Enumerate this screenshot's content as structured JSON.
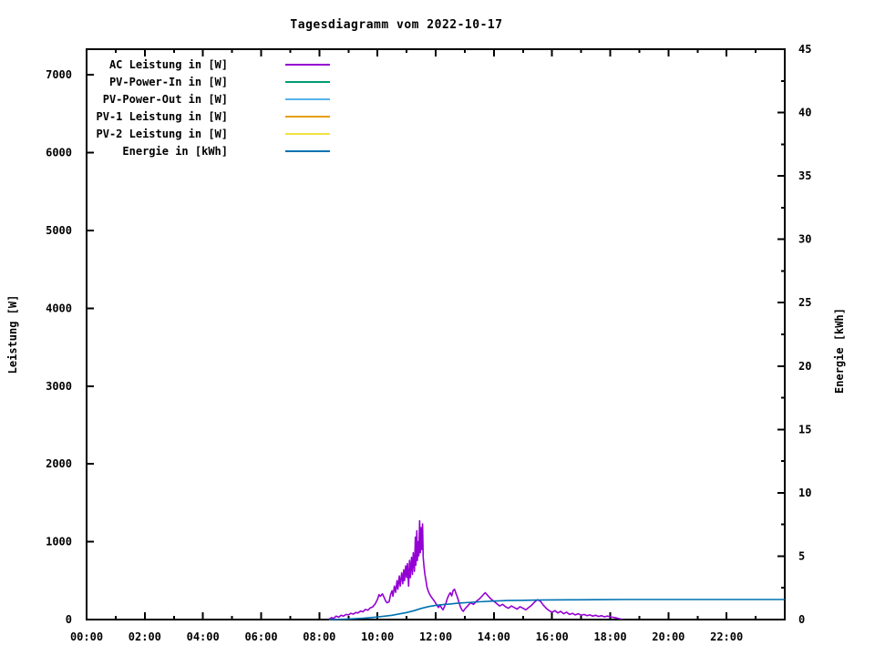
{
  "chart_data": {
    "type": "line",
    "title": "Tagesdiagramm vom 2022-10-17",
    "ylabel": "Leistung [W]",
    "y2label": "Energie [kWh]",
    "x_unit": "hours",
    "xlim": [
      0,
      24
    ],
    "x_tick_hours": [
      0,
      2,
      4,
      6,
      8,
      10,
      12,
      14,
      16,
      18,
      20,
      22
    ],
    "x_tick_labels": [
      "00:00",
      "02:00",
      "04:00",
      "06:00",
      "08:00",
      "10:00",
      "12:00",
      "14:00",
      "16:00",
      "18:00",
      "20:00",
      "22:00"
    ],
    "x_minor_step_h": 1,
    "ylim_left": [
      0,
      7330
    ],
    "y_left_ticks": [
      0,
      1000,
      2000,
      3000,
      4000,
      5000,
      6000,
      7000
    ],
    "ylim_right": [
      0,
      45
    ],
    "y_right_major_ticks": [
      0,
      5,
      10,
      15,
      20,
      25,
      30,
      35,
      40,
      45
    ],
    "y_right_minor_step": 2.5,
    "grid": false,
    "legend_position": "inside-top-left",
    "colors": {
      "axis": "#000000",
      "background": "#ffffff"
    },
    "series": [
      {
        "name": "AC Leistung in [W]",
        "color": "#9400d3",
        "axis": "left",
        "points": [
          [
            8.33,
            5
          ],
          [
            8.42,
            25
          ],
          [
            8.5,
            15
          ],
          [
            8.58,
            45
          ],
          [
            8.67,
            30
          ],
          [
            8.75,
            55
          ],
          [
            8.83,
            45
          ],
          [
            8.92,
            65
          ],
          [
            9.0,
            60
          ],
          [
            9.08,
            80
          ],
          [
            9.17,
            70
          ],
          [
            9.25,
            90
          ],
          [
            9.33,
            85
          ],
          [
            9.42,
            110
          ],
          [
            9.5,
            100
          ],
          [
            9.58,
            130
          ],
          [
            9.67,
            120
          ],
          [
            9.75,
            150
          ],
          [
            9.83,
            160
          ],
          [
            9.92,
            200
          ],
          [
            10.0,
            260
          ],
          [
            10.05,
            320
          ],
          [
            10.1,
            300
          ],
          [
            10.17,
            330
          ],
          [
            10.22,
            290
          ],
          [
            10.28,
            240
          ],
          [
            10.33,
            215
          ],
          [
            10.4,
            230
          ],
          [
            10.45,
            320
          ],
          [
            10.5,
            370
          ],
          [
            10.53,
            300
          ],
          [
            10.58,
            430
          ],
          [
            10.62,
            350
          ],
          [
            10.67,
            500
          ],
          [
            10.7,
            390
          ],
          [
            10.75,
            560
          ],
          [
            10.78,
            430
          ],
          [
            10.83,
            600
          ],
          [
            10.87,
            460
          ],
          [
            10.9,
            640
          ],
          [
            10.93,
            500
          ],
          [
            10.97,
            690
          ],
          [
            11.0,
            540
          ],
          [
            11.03,
            720
          ],
          [
            11.07,
            430
          ],
          [
            11.1,
            760
          ],
          [
            11.13,
            540
          ],
          [
            11.17,
            800
          ],
          [
            11.2,
            580
          ],
          [
            11.23,
            860
          ],
          [
            11.27,
            620
          ],
          [
            11.3,
            1060
          ],
          [
            11.32,
            700
          ],
          [
            11.35,
            1140
          ],
          [
            11.37,
            760
          ],
          [
            11.4,
            1000
          ],
          [
            11.42,
            820
          ],
          [
            11.45,
            1270
          ],
          [
            11.47,
            860
          ],
          [
            11.5,
            1180
          ],
          [
            11.52,
            900
          ],
          [
            11.55,
            1230
          ],
          [
            11.57,
            800
          ],
          [
            11.6,
            680
          ],
          [
            11.63,
            580
          ],
          [
            11.67,
            490
          ],
          [
            11.7,
            420
          ],
          [
            11.75,
            360
          ],
          [
            11.8,
            320
          ],
          [
            11.85,
            290
          ],
          [
            11.9,
            265
          ],
          [
            11.95,
            240
          ],
          [
            12.0,
            210
          ],
          [
            12.05,
            180
          ],
          [
            12.1,
            155
          ],
          [
            12.15,
            190
          ],
          [
            12.2,
            150
          ],
          [
            12.25,
            125
          ],
          [
            12.3,
            165
          ],
          [
            12.35,
            210
          ],
          [
            12.4,
            270
          ],
          [
            12.45,
            315
          ],
          [
            12.5,
            345
          ],
          [
            12.55,
            305
          ],
          [
            12.6,
            375
          ],
          [
            12.65,
            390
          ],
          [
            12.7,
            335
          ],
          [
            12.75,
            285
          ],
          [
            12.8,
            225
          ],
          [
            12.85,
            165
          ],
          [
            12.9,
            125
          ],
          [
            12.95,
            105
          ],
          [
            13.0,
            135
          ],
          [
            13.1,
            175
          ],
          [
            13.2,
            215
          ],
          [
            13.3,
            195
          ],
          [
            13.4,
            235
          ],
          [
            13.5,
            265
          ],
          [
            13.6,
            305
          ],
          [
            13.7,
            345
          ],
          [
            13.75,
            325
          ],
          [
            13.8,
            305
          ],
          [
            13.9,
            265
          ],
          [
            14.0,
            235
          ],
          [
            14.1,
            205
          ],
          [
            14.2,
            175
          ],
          [
            14.3,
            195
          ],
          [
            14.4,
            165
          ],
          [
            14.5,
            145
          ],
          [
            14.6,
            175
          ],
          [
            14.7,
            155
          ],
          [
            14.8,
            135
          ],
          [
            14.9,
            165
          ],
          [
            15.0,
            145
          ],
          [
            15.1,
            125
          ],
          [
            15.2,
            155
          ],
          [
            15.3,
            185
          ],
          [
            15.4,
            225
          ],
          [
            15.5,
            255
          ],
          [
            15.6,
            235
          ],
          [
            15.7,
            185
          ],
          [
            15.8,
            145
          ],
          [
            15.9,
            115
          ],
          [
            16.0,
            95
          ],
          [
            16.1,
            115
          ],
          [
            16.2,
            85
          ],
          [
            16.3,
            105
          ],
          [
            16.4,
            75
          ],
          [
            16.5,
            95
          ],
          [
            16.6,
            65
          ],
          [
            16.7,
            80
          ],
          [
            16.8,
            60
          ],
          [
            16.9,
            75
          ],
          [
            17.0,
            55
          ],
          [
            17.1,
            65
          ],
          [
            17.2,
            50
          ],
          [
            17.3,
            60
          ],
          [
            17.4,
            45
          ],
          [
            17.5,
            55
          ],
          [
            17.6,
            40
          ],
          [
            17.7,
            50
          ],
          [
            17.8,
            35
          ],
          [
            17.9,
            45
          ],
          [
            18.0,
            35
          ],
          [
            18.1,
            28
          ],
          [
            18.2,
            22
          ],
          [
            18.3,
            12
          ],
          [
            18.4,
            5
          ]
        ]
      },
      {
        "name": "PV-Power-In in [W]",
        "color": "#009e73",
        "axis": "left",
        "points": []
      },
      {
        "name": "PV-Power-Out in [W]",
        "color": "#56b4e9",
        "axis": "left",
        "points": []
      },
      {
        "name": "PV-1 Leistung in [W]",
        "color": "#e69f00",
        "axis": "left",
        "points": []
      },
      {
        "name": "PV-2 Leistung in [W]",
        "color": "#f0e442",
        "axis": "left",
        "points": []
      },
      {
        "name": "Energie in [kWh]",
        "color": "#0072b2",
        "axis": "right",
        "points": [
          [
            8.33,
            0
          ],
          [
            9.0,
            0.04
          ],
          [
            9.5,
            0.1
          ],
          [
            10.0,
            0.2
          ],
          [
            10.5,
            0.34
          ],
          [
            11.0,
            0.55
          ],
          [
            11.25,
            0.7
          ],
          [
            11.5,
            0.88
          ],
          [
            11.75,
            1.02
          ],
          [
            12.0,
            1.12
          ],
          [
            12.25,
            1.18
          ],
          [
            12.5,
            1.23
          ],
          [
            12.75,
            1.29
          ],
          [
            13.0,
            1.33
          ],
          [
            13.5,
            1.4
          ],
          [
            14.0,
            1.46
          ],
          [
            14.5,
            1.5
          ],
          [
            15.0,
            1.52
          ],
          [
            15.5,
            1.54
          ],
          [
            16.0,
            1.55
          ],
          [
            16.7,
            1.56
          ],
          [
            17.5,
            1.57
          ],
          [
            18.5,
            1.58
          ],
          [
            24.0,
            1.58
          ]
        ]
      }
    ]
  }
}
